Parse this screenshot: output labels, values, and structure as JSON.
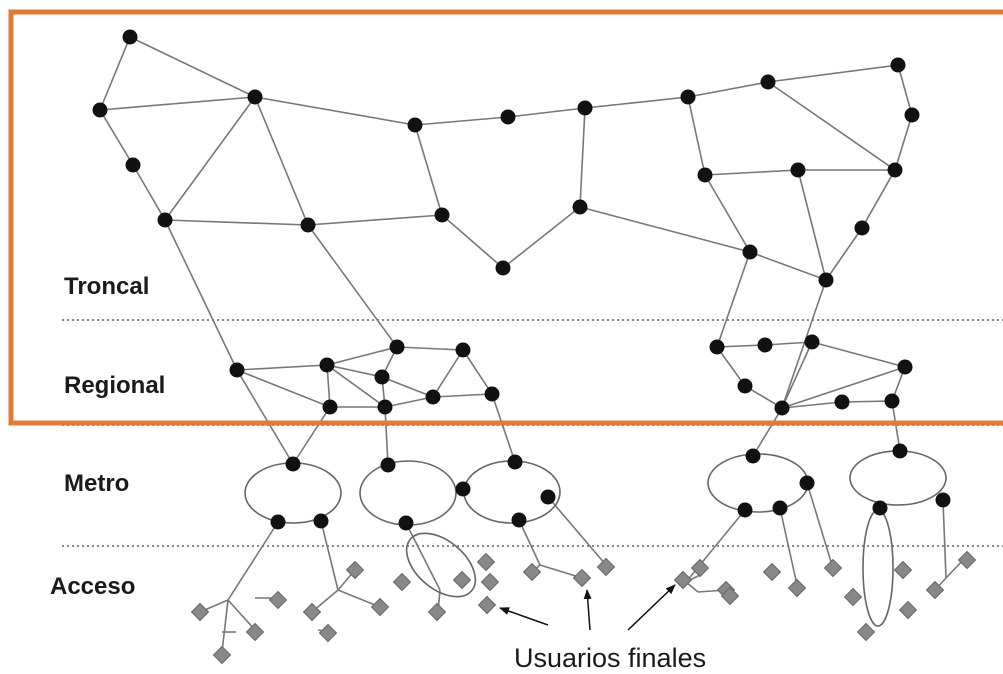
{
  "layers": [
    {
      "id": "troncal",
      "label": "Troncal"
    },
    {
      "id": "regional",
      "label": "Regional"
    },
    {
      "id": "metro",
      "label": "Metro"
    },
    {
      "id": "acceso",
      "label": "Acceso"
    }
  ],
  "annotation": {
    "label": "Usuarios finales"
  },
  "colors": {
    "highlight": "#e07b33",
    "node": "#111111",
    "link": "#777777",
    "ring": "#666666",
    "user_device": "#888888",
    "separator": "#888888"
  }
}
